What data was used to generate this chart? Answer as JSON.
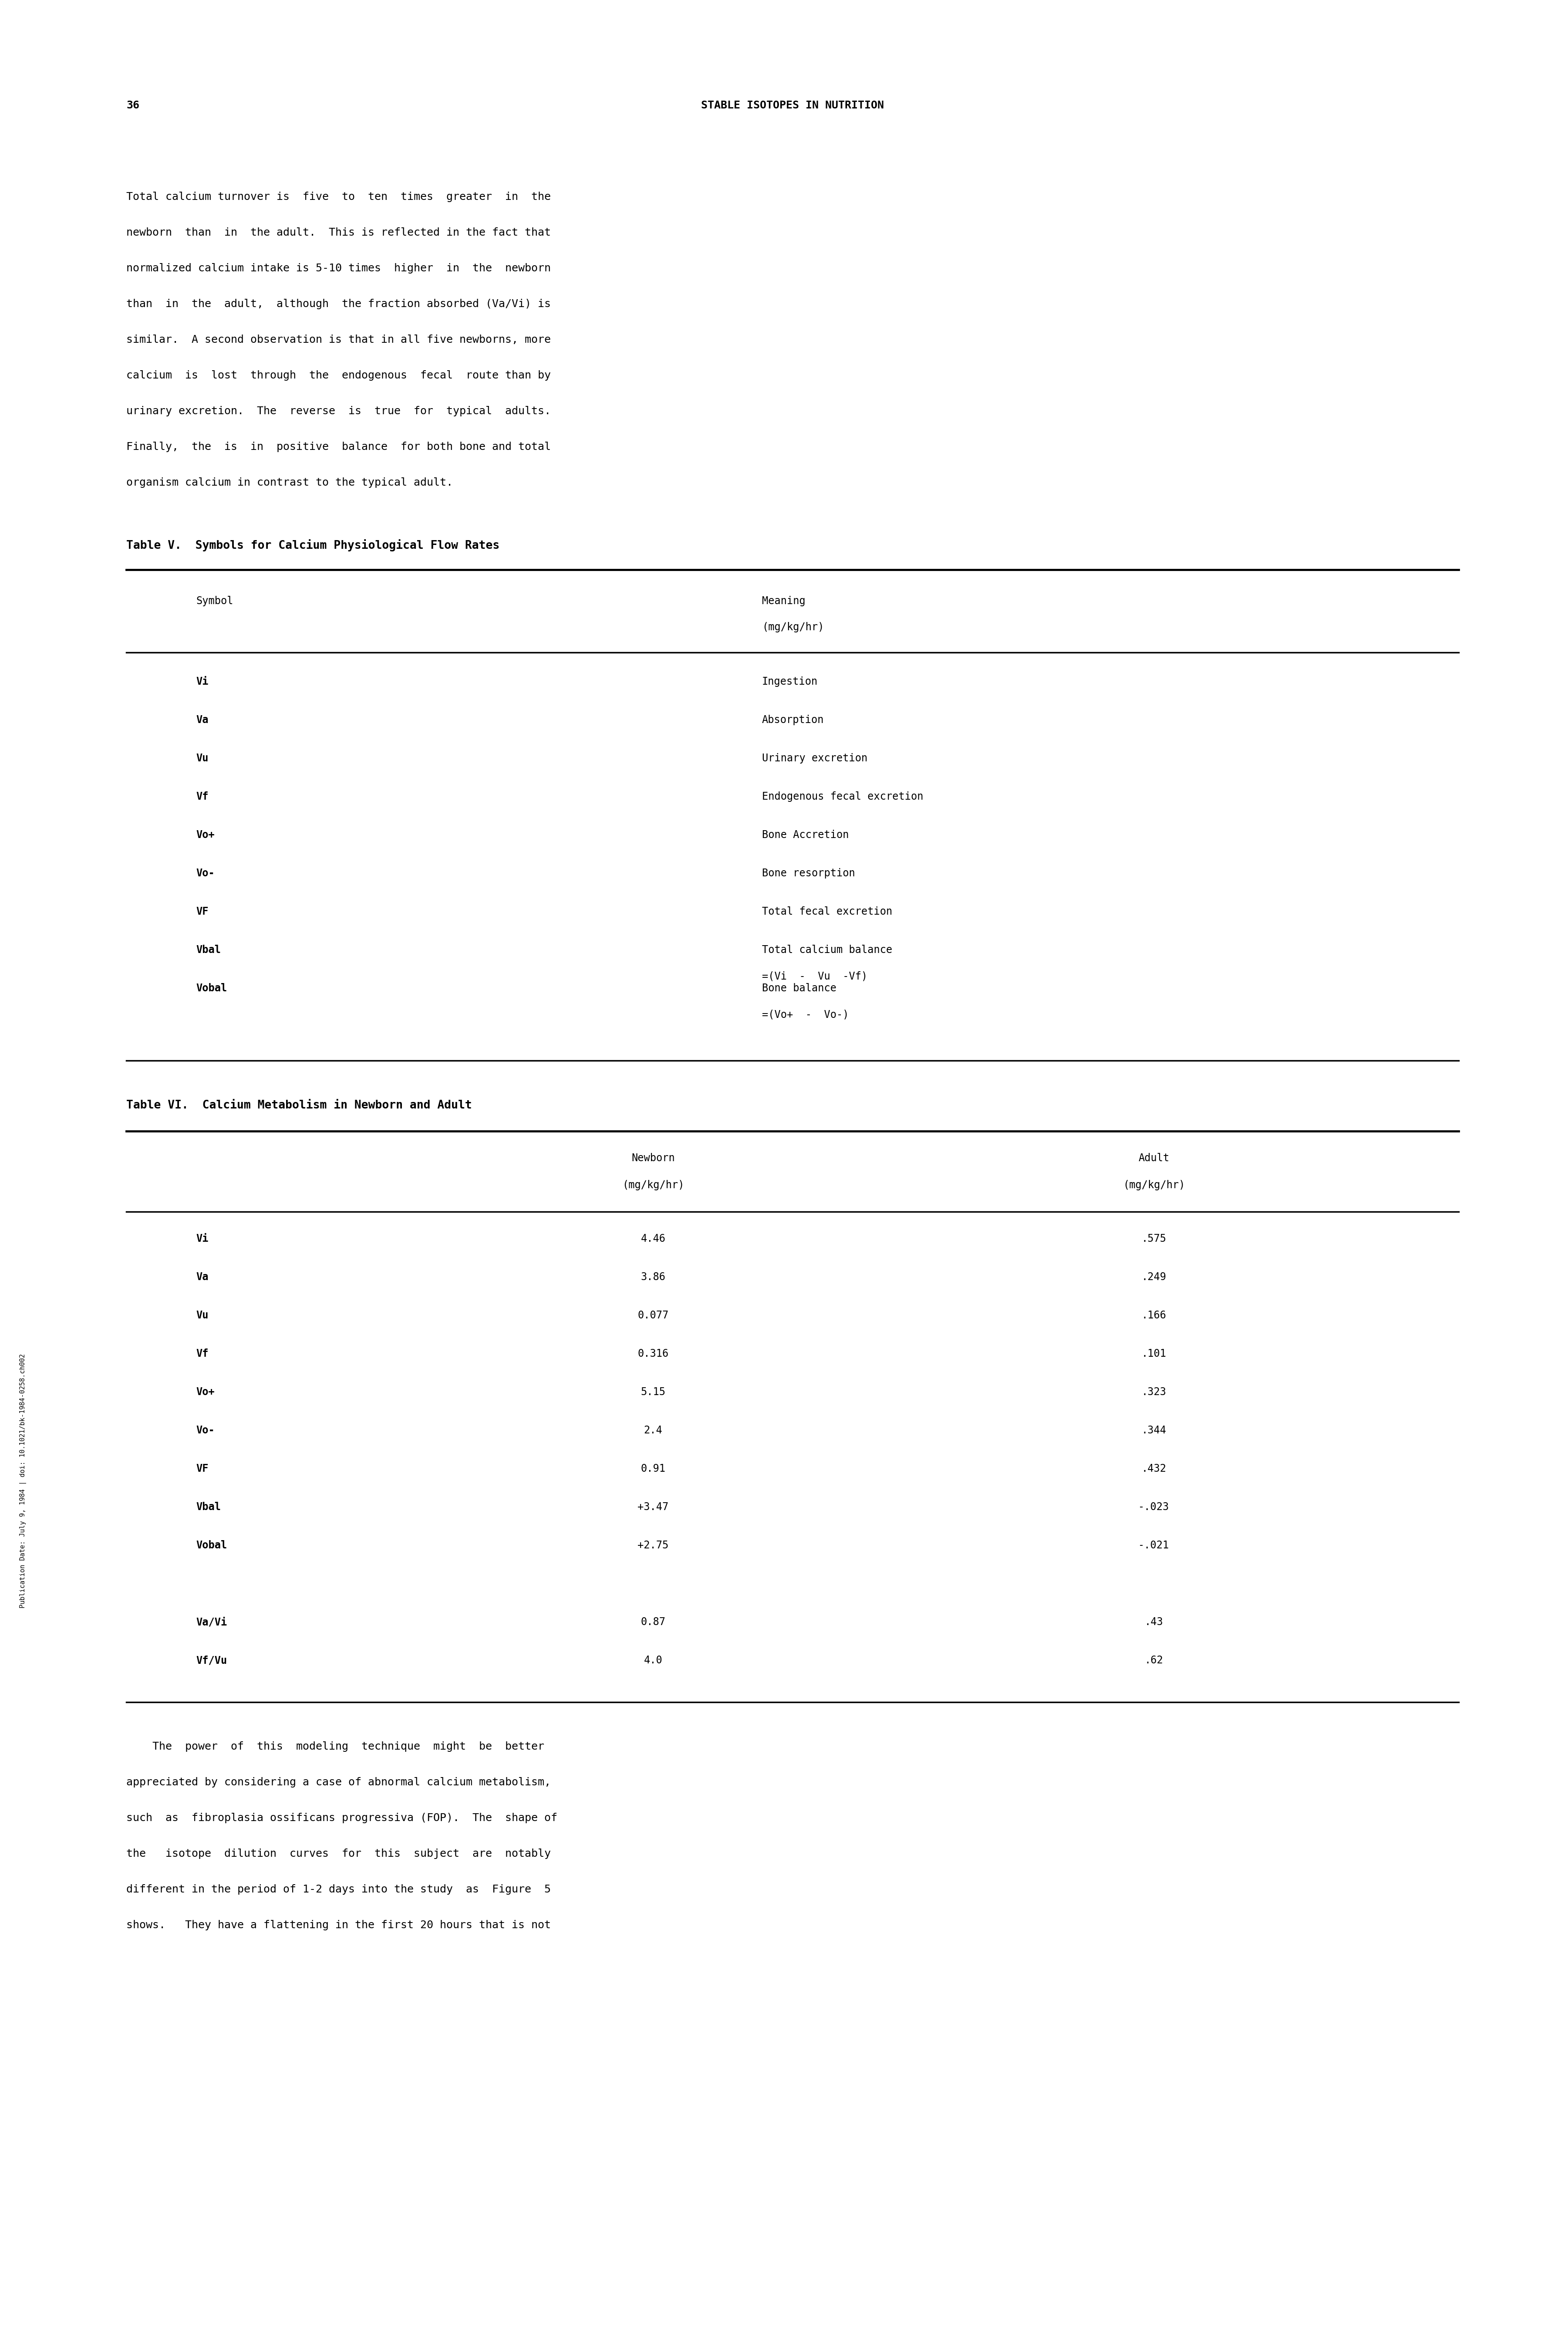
{
  "page_number": "36",
  "page_header": "STABLE ISOTOPES IN NUTRITION",
  "sidebar_text": "Publication Date: July 9, 1984 | doi: 10.1021/bk-1984-0258.ch002",
  "intro_paragraph": "Total calcium turnover is  five  to  ten  times  greater  in  the\nnewborn  than  in  the adult.  This is reflected in the fact that\nnormalized calcium intake is 5-10 times  higher  in  the  newborn\nthan  in  the  adult,  although  the fraction absorbed (Va/Vi) is\nsimilar.  A second observation is that in all five newborns, more\ncalcium  is  lost  through  the  endogenous  fecal  route than by\nurinary excretion.  The  reverse  is  true  for  typical  adults.\nFinally,  the  is  in  positive  balance  for both bone and total\norganism calcium in contrast to the typical adult.",
  "table_v_title": "Table V.  Symbols for Calcium Physiological Flow Rates",
  "table_v_col1_header": "Symbol",
  "table_v_col2_header": "Meaning\n(mg/kg/hr)",
  "table_v_rows": [
    [
      "Vi",
      "Ingestion"
    ],
    [
      "Va",
      "Absorption"
    ],
    [
      "Vu",
      "Urinary excretion"
    ],
    [
      "Vf",
      "Endogenous fecal excretion"
    ],
    [
      "Vo+",
      "Bone Accretion"
    ],
    [
      "Vo-",
      "Bone resorption"
    ],
    [
      "VF",
      "Total fecal excretion"
    ],
    [
      "Vbal",
      "Total calcium balance\n=(Vi  -  Vu  -Vf)"
    ],
    [
      "Vobal",
      "Bone balance\n=(Vo+  -  Vo-)"
    ]
  ],
  "table_vi_title": "Table VI.  Calcium Metabolism in Newborn and Adult",
  "table_vi_col1_header": "",
  "table_vi_col2_header": "Newborn\n(mg/kg/hr)",
  "table_vi_col3_header": "Adult\n(mg/kg/hr)",
  "table_vi_rows": [
    [
      "Vi",
      "4.46",
      ".575"
    ],
    [
      "Va",
      "3.86",
      ".249"
    ],
    [
      "Vu",
      "0.077",
      ".166"
    ],
    [
      "Vf",
      "0.316",
      ".101"
    ],
    [
      "Vo+",
      "5.15",
      ".323"
    ],
    [
      "Vo-",
      "2.4",
      ".344"
    ],
    [
      "VF",
      "0.91",
      ".432"
    ],
    [
      "Vbal",
      "+3.47",
      "-.023"
    ],
    [
      "Vobal",
      "+2.75",
      "-.021"
    ],
    [
      "",
      "",
      ""
    ],
    [
      "Va/Vi",
      "0.87",
      ".43"
    ],
    [
      "Vf/Vu",
      "4.0",
      ".62"
    ]
  ],
  "closing_paragraph": "    The  power  of  this  modeling  technique  might  be  better\nappreciated by considering a case of abnormal calcium metabolism,\nsuch  as  fibroplasia ossificans progressiva (FOP).  The  shape of\nthe   isotope  dilution  curves  for  this  subject  are  notably\ndifferent in the period of 1-2 days into the study  as  Figure  5\nshows.   They have a flattening in the first 20 hours that is not",
  "bg_color": "#ffffff",
  "text_color": "#000000",
  "font_size_body": 18,
  "font_size_header": 18,
  "font_size_page_num": 18,
  "font_size_table_title": 19,
  "font_size_table": 17
}
